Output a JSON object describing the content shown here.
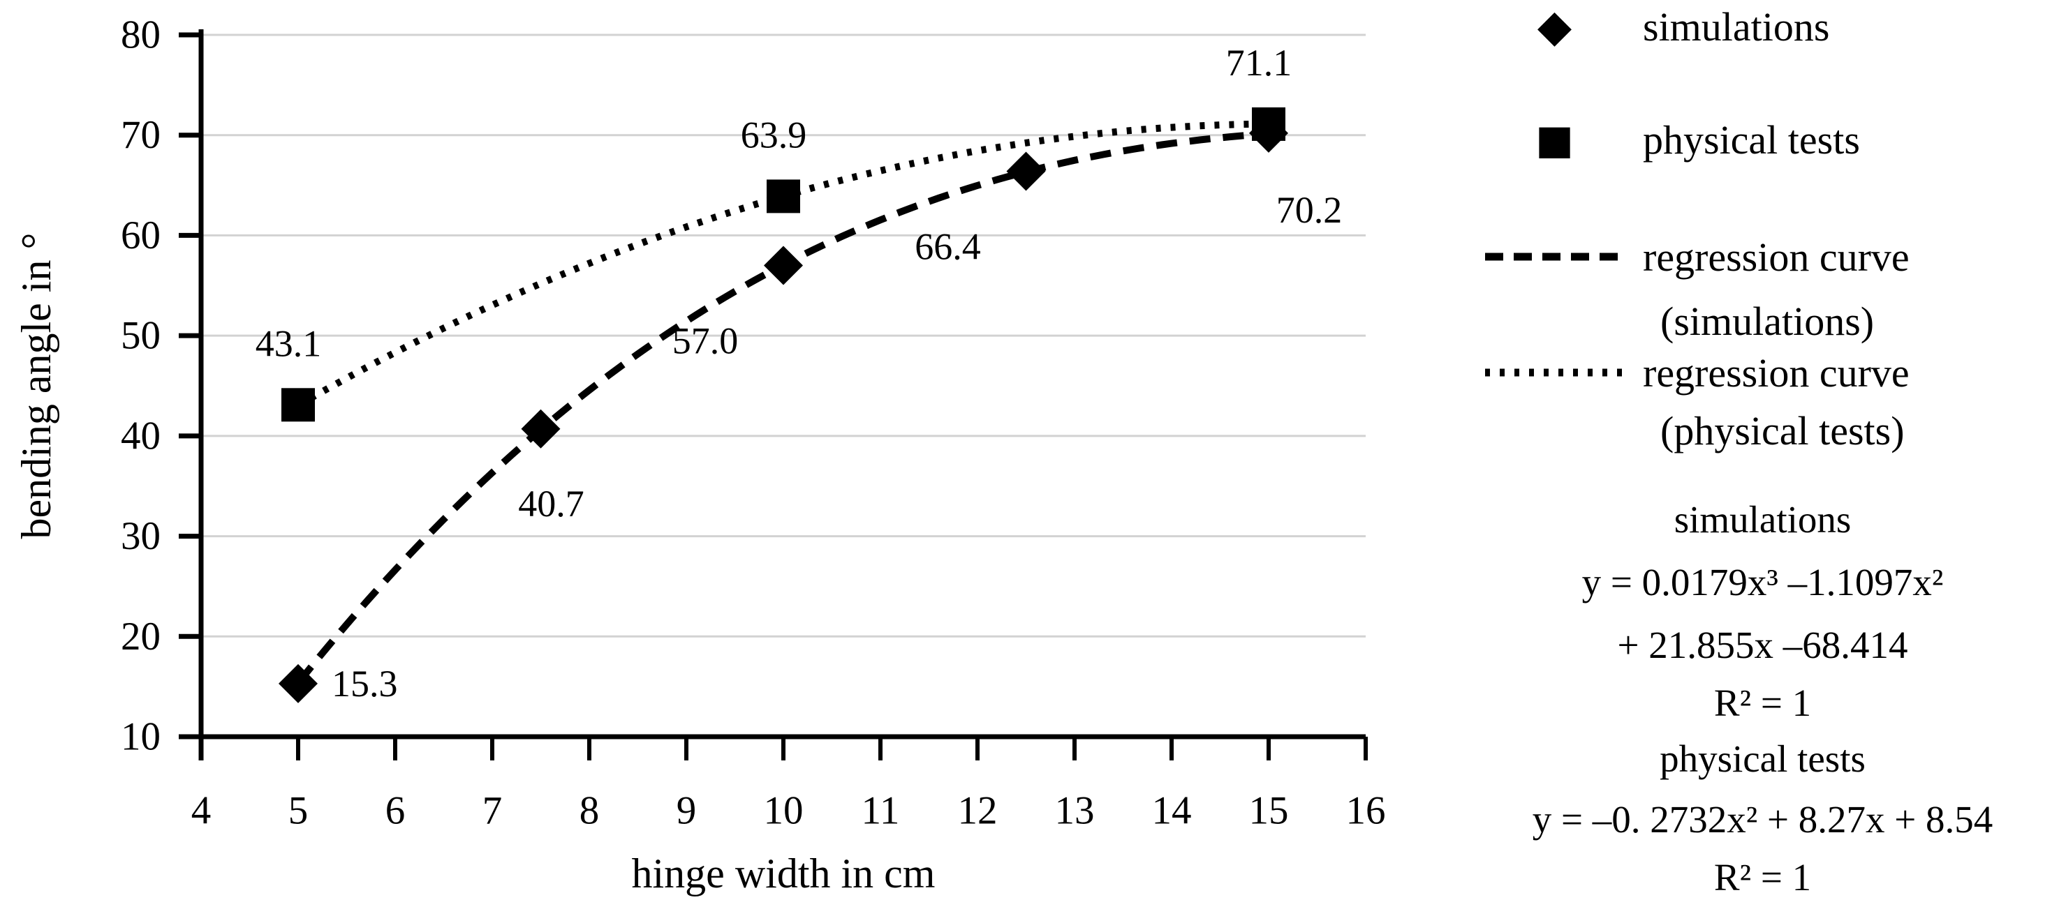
{
  "chart_data": {
    "type": "scatter",
    "title": "",
    "xlabel": "hinge width in cm",
    "ylabel": "bending angle in °",
    "xlim": [
      4,
      16
    ],
    "ylim": [
      10,
      80
    ],
    "x_ticks": [
      4,
      5,
      6,
      7,
      8,
      9,
      10,
      11,
      12,
      13,
      14,
      15,
      16
    ],
    "y_ticks": [
      10,
      20,
      30,
      40,
      50,
      60,
      70,
      80
    ],
    "grid": "horizontal",
    "gridline_color": "#d2d2d2",
    "axis_color": "#000000",
    "marker_color": "#000000",
    "series": [
      {
        "name": "simulations",
        "marker": "diamond",
        "points": [
          {
            "x": 5,
            "y": 15.3,
            "label": "15.3",
            "label_anchor": "right"
          },
          {
            "x": 7.5,
            "y": 40.7,
            "label": "40.7",
            "label_anchor": "below"
          },
          {
            "x": 10,
            "y": 57.0,
            "label": "57.0",
            "label_anchor": "below-left"
          },
          {
            "x": 12.5,
            "y": 66.4,
            "label": "66.4",
            "label_anchor": "below-left"
          },
          {
            "x": 15,
            "y": 70.2,
            "label": "70.2",
            "label_anchor": "below-right"
          }
        ]
      },
      {
        "name": "physical tests",
        "marker": "square",
        "points": [
          {
            "x": 5,
            "y": 43.1,
            "label": "43.1",
            "label_anchor": "above"
          },
          {
            "x": 10,
            "y": 63.9,
            "label": "63.9",
            "label_anchor": "above"
          },
          {
            "x": 15,
            "y": 71.1,
            "label": "71.1",
            "label_anchor": "above"
          }
        ]
      }
    ],
    "curves": [
      {
        "name": "regression curve (simulations)",
        "style": "dashed",
        "coeffs": [
          0.0179,
          -1.1097,
          21.855,
          -68.414
        ],
        "x_range": [
          5,
          15
        ]
      },
      {
        "name": "regression curve (physical tests)",
        "style": "dotted",
        "coeffs": [
          -0.2732,
          8.27,
          8.54
        ],
        "x_range": [
          5,
          15
        ]
      }
    ],
    "legend_position": "right"
  },
  "legend": {
    "simulations": "simulations",
    "physical_tests": "physical tests",
    "regression_sim_line1": "regression curve",
    "regression_sim_line2": "(simulations)",
    "regression_phys_line1": "regression curve",
    "regression_phys_line2": "(physical tests)"
  },
  "equations": {
    "sim_header": "simulations",
    "sim_line1": "y = 0.0179x³ –1.1097x²",
    "sim_line2": "+ 21.855x –68.414",
    "sim_r2": "R² = 1",
    "phys_header": "physical tests",
    "phys_line1": "y = –0. 2732x² + 8.27x + 8.54",
    "phys_r2": "R² = 1"
  }
}
